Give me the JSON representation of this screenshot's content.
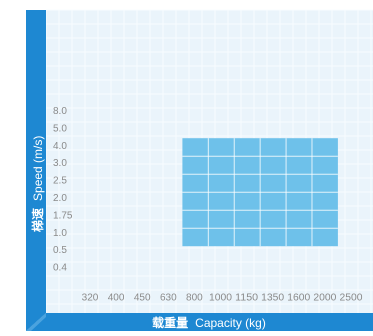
{
  "colors": {
    "background": "#ffffff",
    "panel": "#eaf4fb",
    "panel_grid": "#f8fcff",
    "axis_band": "#1e88d2",
    "highlight_fill": "#6ec1ea",
    "highlight_grid": "#ffffff",
    "tick_text": "#8a8a8a",
    "axis_text": "#ffffff"
  },
  "chart_data": {
    "type": "heatmap",
    "xlabel_cn": "载重量",
    "xlabel_en": "Capacity (kg)",
    "ylabel_cn": "梯速",
    "ylabel_en": "Speed (m/s)",
    "x_categories": [
      "320",
      "400",
      "450",
      "630",
      "800",
      "1000",
      "1150",
      "1350",
      "1600",
      "2000",
      "2500"
    ],
    "y_categories": [
      "0.4",
      "0.5",
      "1.0",
      "1.75",
      "2.0",
      "2.5",
      "3.0",
      "4.0",
      "5.0",
      "8.0"
    ],
    "highlighted_region": {
      "capacity_from": "800",
      "capacity_to": "2000",
      "speed_from": "1.0",
      "speed_to": "4.0"
    },
    "grid": true
  }
}
